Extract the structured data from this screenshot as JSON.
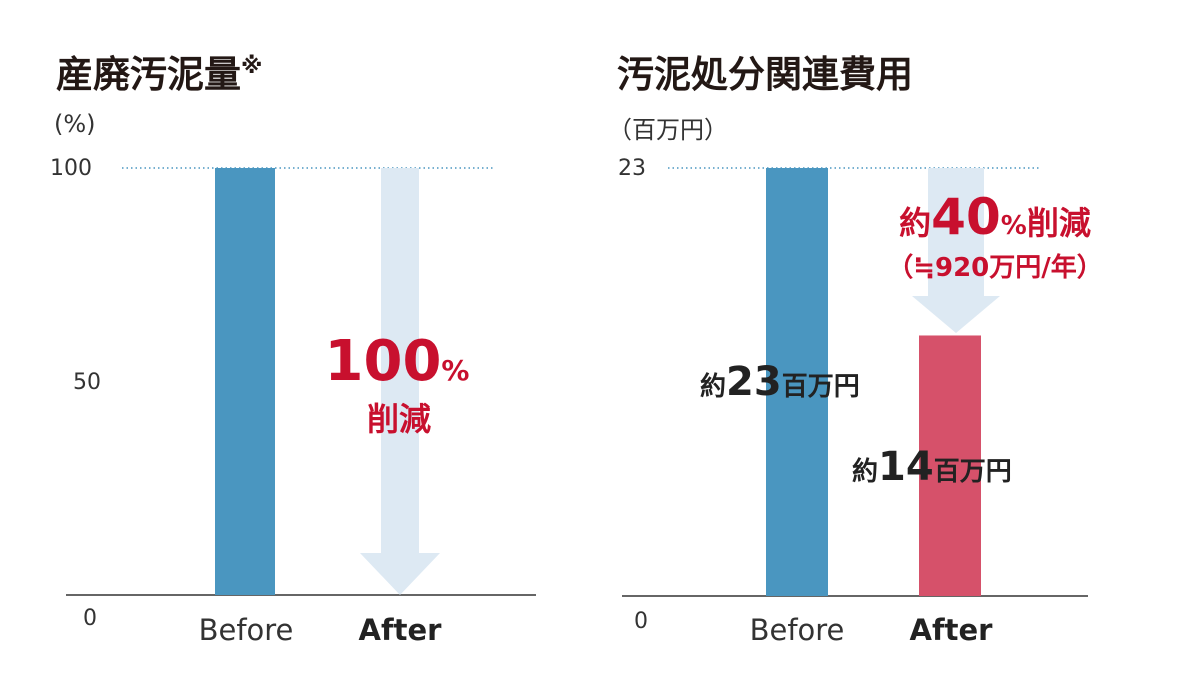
{
  "chart_data": [
    {
      "type": "bar",
      "title": "産廃汚泥量",
      "title_mark": "※",
      "ylabel": "(%)",
      "yticks": [
        "100",
        "50",
        "0"
      ],
      "ylim": [
        0,
        100
      ],
      "categories": [
        "Before",
        "After"
      ],
      "values": [
        100,
        0
      ],
      "annotations": {
        "main": "100",
        "main_unit": "%",
        "sub": "削減"
      },
      "grid": "dotted line at 100",
      "colors": {
        "before": "#4a96c0",
        "arrow": "#dde9f3",
        "accent": "#c8102e"
      }
    },
    {
      "type": "bar",
      "title": "汚泥処分関連費用",
      "ylabel": "（百万円）",
      "yticks": [
        "23",
        "0"
      ],
      "ylim": [
        0,
        23
      ],
      "categories": [
        "Before",
        "After"
      ],
      "values": [
        23,
        14
      ],
      "data_labels": [
        {
          "prefix": "約",
          "num": "23",
          "unit": "百万円"
        },
        {
          "prefix": "約",
          "num": "14",
          "unit": "百万円"
        }
      ],
      "annotations": {
        "prefix": "約",
        "main": "40",
        "main_unit": "%",
        "sub": "削減",
        "note": "（≒920万円/年）"
      },
      "grid": "dotted line at 23",
      "colors": {
        "before": "#4a96c0",
        "after": "#d6516a",
        "arrow": "#dde9f3",
        "accent": "#c8102e"
      }
    }
  ]
}
